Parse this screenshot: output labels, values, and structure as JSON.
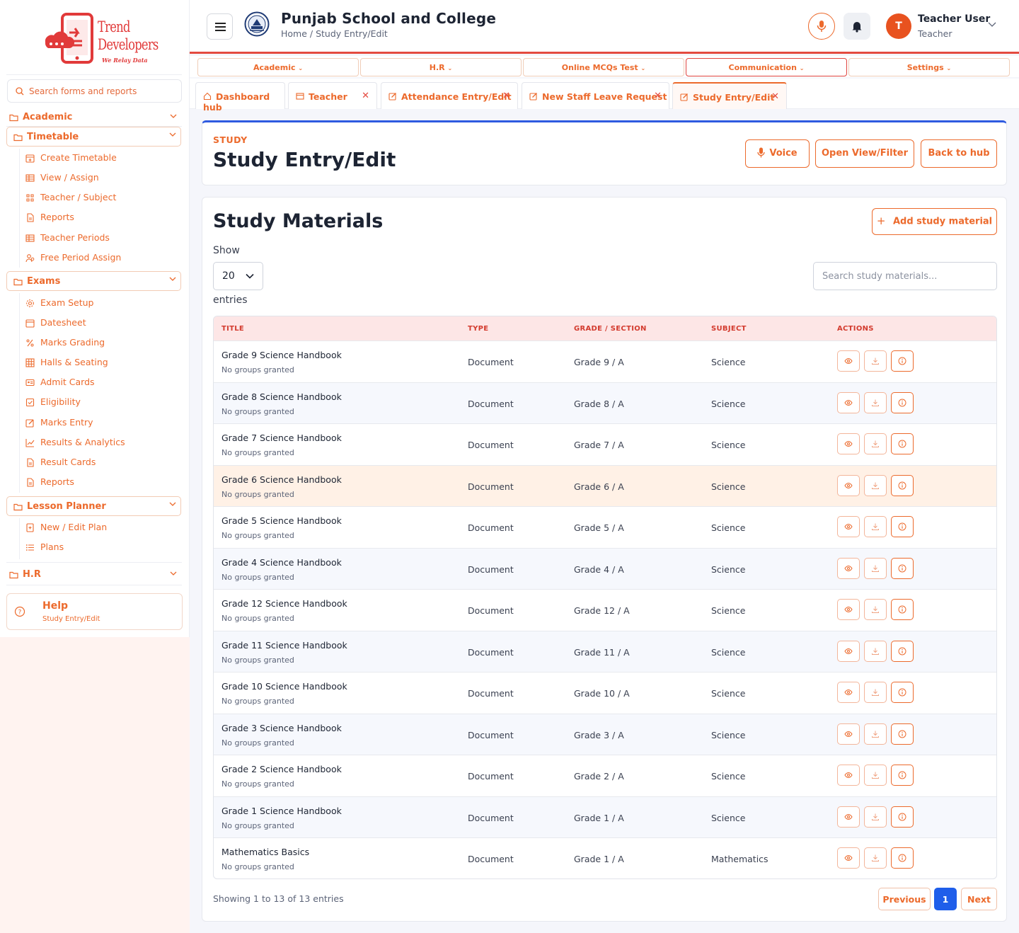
{
  "brand": {
    "line1": "Trend",
    "line2": "Developers",
    "tagline": "We Relay Data"
  },
  "sidebar": {
    "search_placeholder": "Search forms and reports",
    "academic_label": "Academic",
    "timetable": {
      "label": "Timetable",
      "items": [
        {
          "label": "Create Timetable",
          "icon": "calendar-plus-icon"
        },
        {
          "label": "View / Assign",
          "icon": "table-icon"
        },
        {
          "label": "Teacher / Subject",
          "icon": "grid-icon"
        },
        {
          "label": "Reports",
          "icon": "file-icon"
        },
        {
          "label": "Teacher Periods",
          "icon": "table-icon"
        },
        {
          "label": "Free Period Assign",
          "icon": "users-icon"
        }
      ]
    },
    "exams": {
      "label": "Exams",
      "items": [
        {
          "label": "Exam Setup",
          "icon": "gear-icon"
        },
        {
          "label": "Datesheet",
          "icon": "calendar-icon"
        },
        {
          "label": "Marks Grading",
          "icon": "percent-icon"
        },
        {
          "label": "Halls & Seating",
          "icon": "grid-icon"
        },
        {
          "label": "Admit Cards",
          "icon": "id-card-icon"
        },
        {
          "label": "Eligibility",
          "icon": "check-square-icon"
        },
        {
          "label": "Marks Entry",
          "icon": "edit-icon"
        },
        {
          "label": "Results & Analytics",
          "icon": "chart-line-icon"
        },
        {
          "label": "Result Cards",
          "icon": "file-icon"
        },
        {
          "label": "Reports",
          "icon": "file-icon"
        }
      ]
    },
    "lesson_planner": {
      "label": "Lesson Planner",
      "items": [
        {
          "label": "New / Edit Plan",
          "icon": "file-plus-icon"
        },
        {
          "label": "Plans",
          "icon": "list-icon"
        }
      ]
    },
    "hr_label": "H.R",
    "help": {
      "title": "Help",
      "subtitle": "Study Entry/Edit"
    }
  },
  "header": {
    "school_name": "Punjab School and College",
    "breadcrumb": "Home / Study Entry/Edit",
    "user": {
      "initial": "T",
      "name": "Teacher User",
      "role": "Teacher"
    }
  },
  "menu": [
    "Academic",
    "H.R",
    "Online MCQs Test",
    "Communication",
    "Settings"
  ],
  "open_tabs": [
    {
      "label": "Dashboard hub"
    },
    {
      "label": "Teacher"
    },
    {
      "label": "Attendance Entry/Edit"
    },
    {
      "label": "New Staff Leave Request"
    },
    {
      "label": "Study Entry/Edit"
    }
  ],
  "page": {
    "eyebrow": "STUDY",
    "title": "Study Entry/Edit",
    "voice_label": "Voice",
    "open_view_label": "Open View/Filter",
    "back_label": "Back to hub"
  },
  "materials": {
    "title": "Study Materials",
    "add_label": "Add study material",
    "show_label": "Show",
    "page_size": "20",
    "entries_label": "entries",
    "search_placeholder": "Search study materials...",
    "columns": [
      "TITLE",
      "TYPE",
      "GRADE / SECTION",
      "SUBJECT",
      "ACTIONS"
    ],
    "rows": [
      {
        "title": "Grade 9 Science Handbook",
        "sub": "No groups granted",
        "type": "Document",
        "grade": "Grade 9 / A",
        "subject": "Science"
      },
      {
        "title": "Grade 8 Science Handbook",
        "sub": "No groups granted",
        "type": "Document",
        "grade": "Grade 8 / A",
        "subject": "Science"
      },
      {
        "title": "Grade 7 Science Handbook",
        "sub": "No groups granted",
        "type": "Document",
        "grade": "Grade 7 / A",
        "subject": "Science"
      },
      {
        "title": "Grade 6 Science Handbook",
        "sub": "No groups granted",
        "type": "Document",
        "grade": "Grade 6 / A",
        "subject": "Science"
      },
      {
        "title": "Grade 5 Science Handbook",
        "sub": "No groups granted",
        "type": "Document",
        "grade": "Grade 5 / A",
        "subject": "Science"
      },
      {
        "title": "Grade 4 Science Handbook",
        "sub": "No groups granted",
        "type": "Document",
        "grade": "Grade 4 / A",
        "subject": "Science"
      },
      {
        "title": "Grade 12 Science Handbook",
        "sub": "No groups granted",
        "type": "Document",
        "grade": "Grade 12 / A",
        "subject": "Science"
      },
      {
        "title": "Grade 11 Science Handbook",
        "sub": "No groups granted",
        "type": "Document",
        "grade": "Grade 11 / A",
        "subject": "Science"
      },
      {
        "title": "Grade 10 Science Handbook",
        "sub": "No groups granted",
        "type": "Document",
        "grade": "Grade 10 / A",
        "subject": "Science"
      },
      {
        "title": "Grade 3 Science Handbook",
        "sub": "No groups granted",
        "type": "Document",
        "grade": "Grade 3 / A",
        "subject": "Science"
      },
      {
        "title": "Grade 2 Science Handbook",
        "sub": "No groups granted",
        "type": "Document",
        "grade": "Grade 2 / A",
        "subject": "Science"
      },
      {
        "title": "Grade 1 Science Handbook",
        "sub": "No groups granted",
        "type": "Document",
        "grade": "Grade 1 / A",
        "subject": "Science"
      },
      {
        "title": "Mathematics Basics",
        "sub": "No groups granted",
        "type": "Document",
        "grade": "Grade 1 / A",
        "subject": "Mathematics"
      }
    ],
    "footer_info": "Showing 1 to 13 of 13 entries",
    "prev_label": "Previous",
    "current_page": "1",
    "next_label": "Next"
  },
  "colors": {
    "accent": "#ec6a2c",
    "brand_red": "#e13a3a",
    "header_rule": "#e44a3f",
    "page_blue": "#2e5ae0",
    "pager_blue": "#1f5eea"
  }
}
